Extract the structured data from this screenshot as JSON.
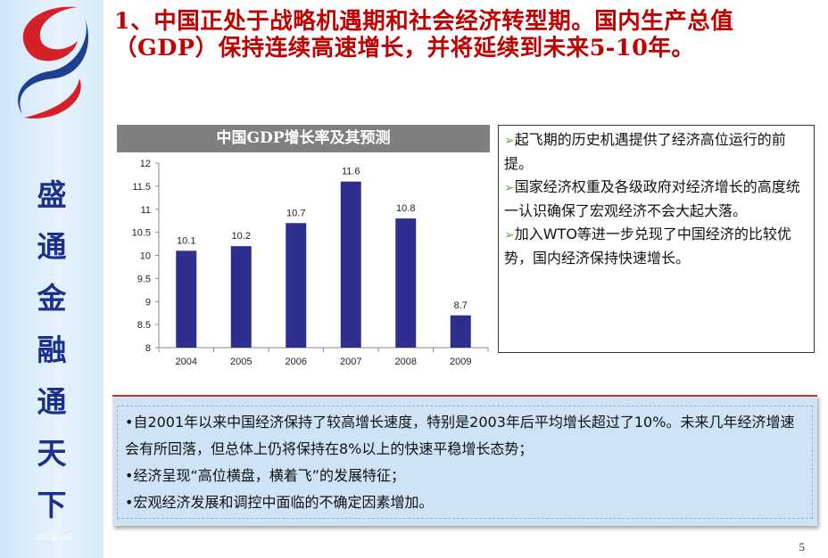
{
  "slide": {
    "title": "1、中国正处于战略机遇期和社会经济转型期。国内生产总值（GDP）保持连续高速增长，并将延续到未来5-10年。",
    "sidebar_chars": [
      "盛",
      "通",
      "金",
      "融",
      "通",
      "天",
      "下"
    ],
    "date": "2013-1-7",
    "page_number": "5"
  },
  "chart_header": "中国GDP增长率及其预测",
  "chart_data": {
    "type": "bar",
    "title": "中国GDP增长率及其预测",
    "categories": [
      "2004",
      "2005",
      "2006",
      "2007",
      "2008",
      "2009"
    ],
    "values": [
      10.1,
      10.2,
      10.7,
      11.6,
      10.8,
      8.7
    ],
    "data_labels": [
      "10.1",
      "10.2",
      "10.7",
      "11.6",
      "10.8",
      "8.7"
    ],
    "ylim": [
      8,
      12
    ],
    "yticks": [
      "8",
      "8.5",
      "9",
      "9.5",
      "10",
      "10.5",
      "11",
      "11.5",
      "12"
    ],
    "grid": false,
    "bar_color": "#2e2e8f"
  },
  "right_points": [
    {
      "bullet": "➢",
      "text": "起飞期的历史机遇提供了经济高位运行的前提。"
    },
    {
      "bullet": "➢",
      "text": "国家经济权重及各级政府对经济增长的高度统一认识确保了宏观经济不会大起大落。"
    },
    {
      "bullet": "➢",
      "text": "加入WTO等进一步兑现了中国经济的比较优势，国内经济保持快速增长。"
    }
  ],
  "bottom_points": [
    {
      "bullet": "•",
      "text": "自2001年以来中国经济保持了较高增长速度，特别是2003年后平均增长超过了10%。未来几年经济增速会有所回落，但总体上仍将保持在8%以上的快速平稳增长态势；"
    },
    {
      "bullet": "•",
      "text": "经济呈现“高位横盘，横着飞”的发展特征；"
    },
    {
      "bullet": "•",
      "text": "宏观经济发展和调控中面临的不确定因素增加。"
    }
  ],
  "colors": {
    "title": "#c00000",
    "sidebar_text": "#1b2f8f",
    "logo_blue": "#1f3f8f",
    "logo_red": "#d62027",
    "bullet_arrow": "#6aa84f"
  },
  "icons": {
    "logo": "stylized-s-logo-icon",
    "right_bullet": "arrow-bullet-icon"
  }
}
